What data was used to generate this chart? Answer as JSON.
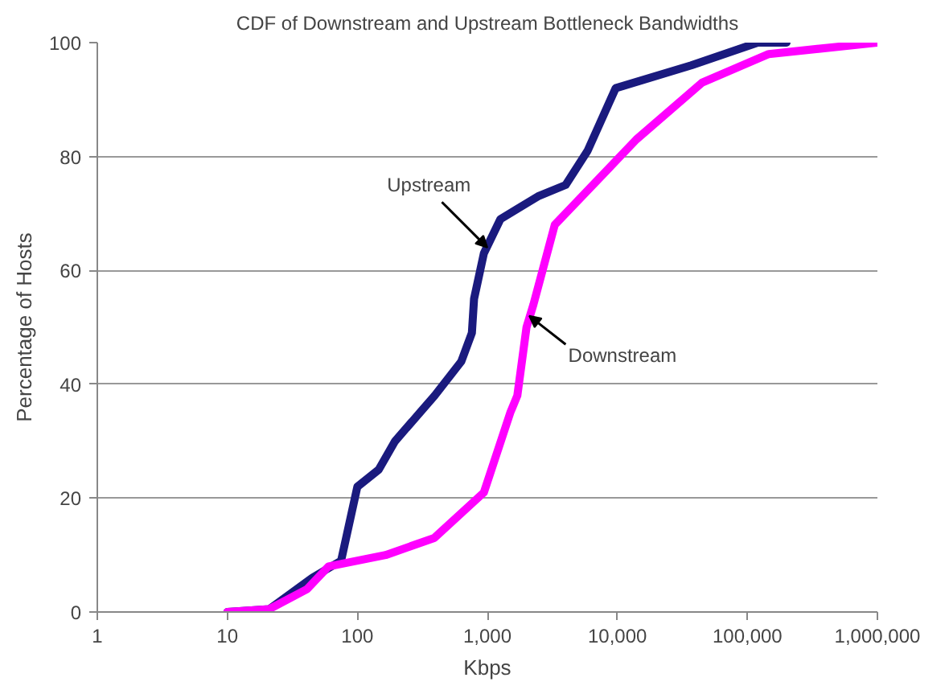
{
  "chart_data": {
    "type": "line",
    "title": "CDF of Downstream and Upstream Bottleneck Bandwidths",
    "xlabel": "Kbps",
    "ylabel": "Percentage of Hosts",
    "log": "x",
    "grid": "y",
    "marker": "none",
    "line_style": "solid",
    "xlim": [
      1,
      1000000
    ],
    "ylim": [
      0,
      100
    ],
    "xticks": [
      1,
      10,
      100,
      {
        "value": 1000,
        "label": "1,000"
      },
      {
        "value": 10000,
        "label": "10,000"
      },
      {
        "value": 100000,
        "label": "100,000"
      },
      {
        "value": 1000000,
        "label": "1,000,000"
      }
    ],
    "yticks": [
      0,
      20,
      40,
      60,
      80,
      100
    ],
    "series": [
      {
        "color": "#1a1a7e",
        "x": [
          10,
          21,
          45,
          75,
          100,
          146,
          195,
          393,
          630,
          760,
          790,
          940,
          1260,
          2450,
          4000,
          5900,
          9700,
          37000,
          120000,
          200000
        ],
        "values": [
          0,
          0.5,
          6,
          9,
          22,
          25,
          30,
          38,
          44,
          49,
          55,
          63,
          69,
          73,
          75,
          81,
          92,
          96,
          100,
          100
        ]
      },
      {
        "color": "#ff00ff",
        "x": [
          10,
          21,
          41,
          60,
          165,
          390,
          940,
          1500,
          1700,
          2000,
          2260,
          3300,
          14000,
          45000,
          146000,
          1000000
        ],
        "values": [
          0,
          0.5,
          4,
          8,
          10,
          13,
          21,
          35,
          38,
          50,
          54,
          68,
          83,
          93,
          98,
          100
        ]
      }
    ],
    "annotations": [
      {
        "text": "Upstream",
        "x": 1000,
        "y": 64
      },
      {
        "text": "Downstream",
        "x": 2100,
        "y": 52
      }
    ]
  }
}
